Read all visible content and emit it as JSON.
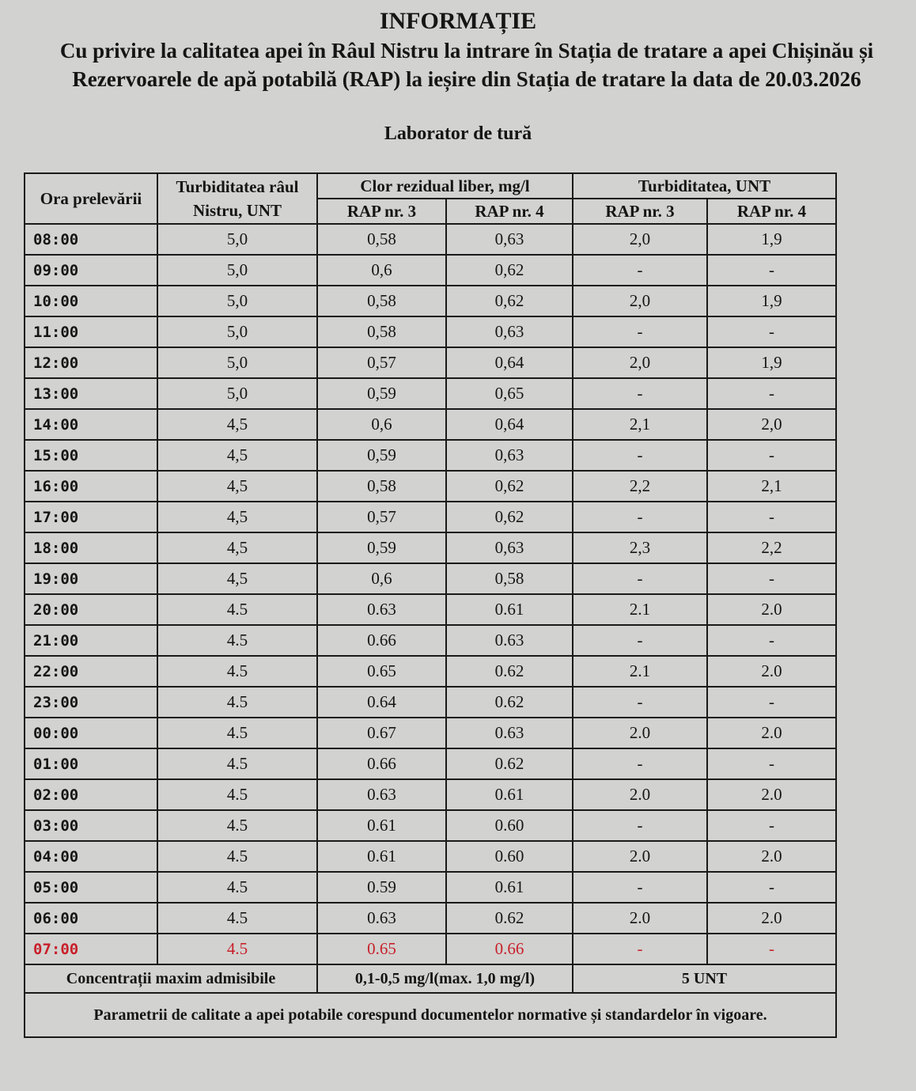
{
  "title": "INFORMAȚIE",
  "subtitle": "Cu privire la calitatea apei în Râul Nistru la intrare în Stația de tratare a apei Chișinău și Rezervoarele de apă potabilă (RAP) la ieșire din Stația de tratare la data de 20.03.2026",
  "laboratory": "Laborator de tură",
  "table": {
    "headers": {
      "time": "Ora prelevării",
      "turbidity_river": "Turbiditatea râul Nistru, UNT",
      "chlorine": "Clor rezidual liber, mg/l",
      "turbidity_rap": "Turbiditatea, UNT",
      "rap3": "RAP nr. 3",
      "rap4": "RAP nr. 4"
    },
    "rows": [
      [
        "08:00",
        "5,0",
        "0,58",
        "0,63",
        "2,0",
        "1,9"
      ],
      [
        "09:00",
        "5,0",
        "0,6",
        "0,62",
        "-",
        "-"
      ],
      [
        "10:00",
        "5,0",
        "0,58",
        "0,62",
        "2,0",
        "1,9"
      ],
      [
        "11:00",
        "5,0",
        "0,58",
        "0,63",
        "-",
        "-"
      ],
      [
        "12:00",
        "5,0",
        "0,57",
        "0,64",
        "2,0",
        "1,9"
      ],
      [
        "13:00",
        "5,0",
        "0,59",
        "0,65",
        "-",
        "-"
      ],
      [
        "14:00",
        "4,5",
        "0,6",
        "0,64",
        "2,1",
        "2,0"
      ],
      [
        "15:00",
        "4,5",
        "0,59",
        "0,63",
        "-",
        "-"
      ],
      [
        "16:00",
        "4,5",
        "0,58",
        "0,62",
        "2,2",
        "2,1"
      ],
      [
        "17:00",
        "4,5",
        "0,57",
        "0,62",
        "-",
        "-"
      ],
      [
        "18:00",
        "4,5",
        "0,59",
        "0,63",
        "2,3",
        "2,2"
      ],
      [
        "19:00",
        "4,5",
        "0,6",
        "0,58",
        "-",
        "-"
      ],
      [
        "20:00",
        "4.5",
        "0.63",
        "0.61",
        "2.1",
        "2.0"
      ],
      [
        "21:00",
        "4.5",
        "0.66",
        "0.63",
        "-",
        "-"
      ],
      [
        "22:00",
        "4.5",
        "0.65",
        "0.62",
        "2.1",
        "2.0"
      ],
      [
        "23:00",
        "4.5",
        "0.64",
        "0.62",
        "-",
        "-"
      ],
      [
        "00:00",
        "4.5",
        "0.67",
        "0.63",
        "2.0",
        "2.0"
      ],
      [
        "01:00",
        "4.5",
        "0.66",
        "0.62",
        "-",
        "-"
      ],
      [
        "02:00",
        "4.5",
        "0.63",
        "0.61",
        "2.0",
        "2.0"
      ],
      [
        "03:00",
        "4.5",
        "0.61",
        "0.60",
        "-",
        "-"
      ],
      [
        "04:00",
        "4.5",
        "0.61",
        "0.60",
        "2.0",
        "2.0"
      ],
      [
        "05:00",
        "4.5",
        "0.59",
        "0.61",
        "-",
        "-"
      ],
      [
        "06:00",
        "4.5",
        "0.63",
        "0.62",
        "2.0",
        "2.0"
      ],
      [
        "07:00",
        "4.5",
        "0.65",
        "0.66",
        "-",
        "-"
      ]
    ],
    "highlight_color": "#c8202a",
    "limits": {
      "label": "Concentrații maxim admisibile",
      "chlorine": "0,1-0,5 mg/l(max. 1,0 mg/l)",
      "turbidity": "5 UNT"
    },
    "note": "Parametrii de calitate a apei potabile corespund documentelor normative și standardelor în vigoare."
  }
}
